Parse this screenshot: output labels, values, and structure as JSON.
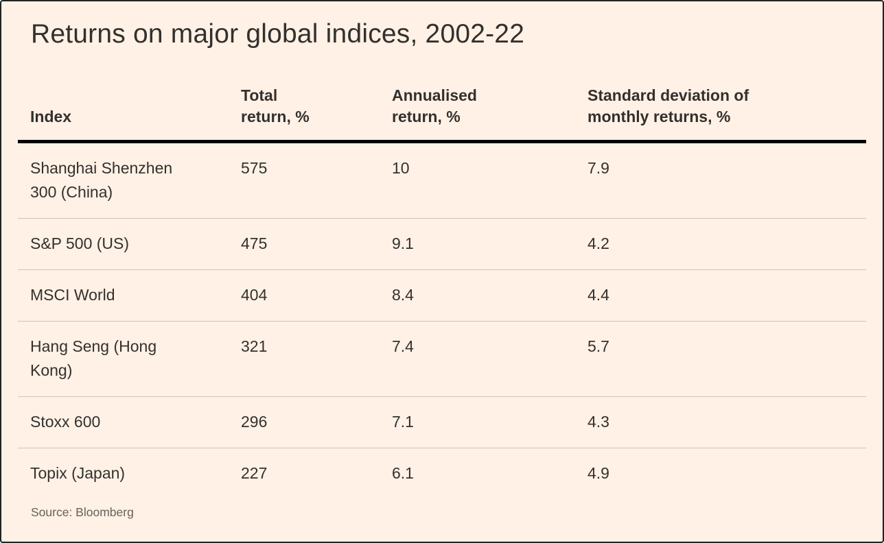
{
  "title": "Returns on major global indices, 2002-22",
  "table": {
    "columns": [
      {
        "lines": [
          "Index"
        ]
      },
      {
        "lines": [
          "Total",
          "return, %"
        ]
      },
      {
        "lines": [
          "Annualised",
          "return, %"
        ]
      },
      {
        "lines": [
          "Standard deviation of",
          "monthly returns, %"
        ]
      }
    ],
    "rows": [
      {
        "index": "Shanghai Shenzhen 300 (China)",
        "total_return": "575",
        "annualised_return": "10",
        "std_dev": "7.9"
      },
      {
        "index": "S&P 500 (US)",
        "total_return": "475",
        "annualised_return": "9.1",
        "std_dev": "4.2"
      },
      {
        "index": "MSCI World",
        "total_return": "404",
        "annualised_return": "8.4",
        "std_dev": "4.4"
      },
      {
        "index": "Hang Seng (Hong Kong)",
        "total_return": "321",
        "annualised_return": "7.4",
        "std_dev": "5.7"
      },
      {
        "index": "Stoxx 600",
        "total_return": "296",
        "annualised_return": "7.1",
        "std_dev": "4.3"
      },
      {
        "index": "Topix (Japan)",
        "total_return": "227",
        "annualised_return": "6.1",
        "std_dev": "4.9"
      }
    ]
  },
  "source": "Source: Bloomberg",
  "colors": {
    "background": "#fff1e5",
    "text": "#33302e",
    "header_rule": "#000000",
    "row_divider": "#cdc3b9",
    "source_text": "#67615b",
    "frame_border": "#222222"
  },
  "chart_data": {
    "type": "table",
    "title": "Returns on major global indices, 2002-22",
    "categories": [
      "Shanghai Shenzhen 300 (China)",
      "S&P 500 (US)",
      "MSCI World",
      "Hang Seng (Hong Kong)",
      "Stoxx 600",
      "Topix (Japan)"
    ],
    "series": [
      {
        "name": "Total return, %",
        "values": [
          575,
          475,
          404,
          321,
          296,
          227
        ]
      },
      {
        "name": "Annualised return, %",
        "values": [
          10,
          9.1,
          8.4,
          7.4,
          7.1,
          6.1
        ]
      },
      {
        "name": "Standard deviation of monthly returns, %",
        "values": [
          7.9,
          4.2,
          4.4,
          5.7,
          4.3,
          4.9
        ]
      }
    ],
    "source": "Source: Bloomberg"
  }
}
